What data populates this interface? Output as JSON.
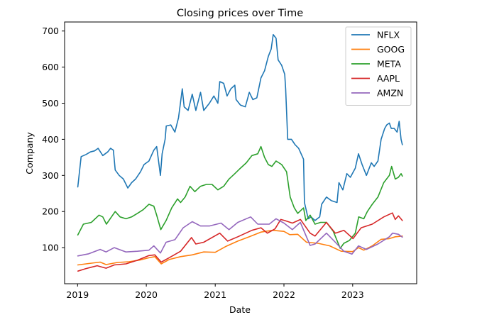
{
  "chart_data": {
    "type": "line",
    "title": "Closing prices over Time",
    "xlabel": "Date",
    "ylabel": "Company",
    "xlim": [
      "2018-10-24",
      "2023-12-07"
    ],
    "ylim": [
      0,
      725
    ],
    "xticks": [
      {
        "value": "2019-01-01",
        "label": "2019"
      },
      {
        "value": "2020-01-01",
        "label": "2020"
      },
      {
        "value": "2021-01-01",
        "label": "2021"
      },
      {
        "value": "2022-01-01",
        "label": "2022"
      },
      {
        "value": "2023-01-01",
        "label": "2023"
      }
    ],
    "yticks": [
      {
        "value": 100,
        "label": "100"
      },
      {
        "value": 200,
        "label": "200"
      },
      {
        "value": 300,
        "label": "300"
      },
      {
        "value": 400,
        "label": "400"
      },
      {
        "value": 500,
        "label": "500"
      },
      {
        "value": 600,
        "label": "600"
      },
      {
        "value": 700,
        "label": "700"
      }
    ],
    "grid": false,
    "legend_position": "top-right",
    "series": [
      {
        "name": "NFLX",
        "color": "#1f77b4",
        "points": [
          [
            "2019-01-02",
            268
          ],
          [
            "2019-01-20",
            352
          ],
          [
            "2019-02-15",
            358
          ],
          [
            "2019-03-10",
            365
          ],
          [
            "2019-04-01",
            368
          ],
          [
            "2019-04-20",
            375
          ],
          [
            "2019-05-15",
            355
          ],
          [
            "2019-06-10",
            365
          ],
          [
            "2019-06-25",
            375
          ],
          [
            "2019-07-10",
            370
          ],
          [
            "2019-07-20",
            315
          ],
          [
            "2019-08-10",
            300
          ],
          [
            "2019-09-01",
            290
          ],
          [
            "2019-09-25",
            265
          ],
          [
            "2019-10-15",
            280
          ],
          [
            "2019-11-05",
            290
          ],
          [
            "2019-12-01",
            310
          ],
          [
            "2019-12-20",
            330
          ],
          [
            "2020-01-15",
            340
          ],
          [
            "2020-02-10",
            370
          ],
          [
            "2020-02-25",
            380
          ],
          [
            "2020-03-16",
            300
          ],
          [
            "2020-03-25",
            360
          ],
          [
            "2020-04-10",
            400
          ],
          [
            "2020-04-16",
            437
          ],
          [
            "2020-05-10",
            440
          ],
          [
            "2020-06-01",
            420
          ],
          [
            "2020-06-20",
            460
          ],
          [
            "2020-07-10",
            540
          ],
          [
            "2020-07-20",
            490
          ],
          [
            "2020-08-10",
            480
          ],
          [
            "2020-09-01",
            525
          ],
          [
            "2020-09-20",
            480
          ],
          [
            "2020-10-15",
            530
          ],
          [
            "2020-11-01",
            480
          ],
          [
            "2020-12-01",
            500
          ],
          [
            "2020-12-25",
            520
          ],
          [
            "2021-01-15",
            500
          ],
          [
            "2021-01-25",
            560
          ],
          [
            "2021-02-15",
            555
          ],
          [
            "2021-03-05",
            520
          ],
          [
            "2021-03-25",
            540
          ],
          [
            "2021-04-15",
            550
          ],
          [
            "2021-04-22",
            510
          ],
          [
            "2021-05-15",
            495
          ],
          [
            "2021-06-10",
            490
          ],
          [
            "2021-07-01",
            530
          ],
          [
            "2021-07-20",
            510
          ],
          [
            "2021-08-10",
            515
          ],
          [
            "2021-09-01",
            570
          ],
          [
            "2021-09-20",
            590
          ],
          [
            "2021-10-10",
            630
          ],
          [
            "2021-10-25",
            650
          ],
          [
            "2021-11-05",
            690
          ],
          [
            "2021-11-20",
            680
          ],
          [
            "2021-12-01",
            620
          ],
          [
            "2021-12-20",
            605
          ],
          [
            "2022-01-05",
            580
          ],
          [
            "2022-01-10",
            540
          ],
          [
            "2022-01-21",
            400
          ],
          [
            "2022-02-10",
            400
          ],
          [
            "2022-03-01",
            385
          ],
          [
            "2022-03-20",
            375
          ],
          [
            "2022-04-15",
            345
          ],
          [
            "2022-04-20",
            225
          ],
          [
            "2022-05-10",
            180
          ],
          [
            "2022-05-25",
            185
          ],
          [
            "2022-06-15",
            175
          ],
          [
            "2022-07-10",
            185
          ],
          [
            "2022-07-20",
            220
          ],
          [
            "2022-08-15",
            240
          ],
          [
            "2022-09-10",
            230
          ],
          [
            "2022-10-10",
            225
          ],
          [
            "2022-10-20",
            280
          ],
          [
            "2022-11-10",
            260
          ],
          [
            "2022-12-01",
            305
          ],
          [
            "2022-12-20",
            295
          ],
          [
            "2023-01-15",
            320
          ],
          [
            "2023-02-01",
            360
          ],
          [
            "2023-02-20",
            330
          ],
          [
            "2023-03-15",
            300
          ],
          [
            "2023-04-10",
            335
          ],
          [
            "2023-04-25",
            325
          ],
          [
            "2023-05-15",
            340
          ],
          [
            "2023-06-01",
            400
          ],
          [
            "2023-06-20",
            430
          ],
          [
            "2023-07-01",
            440
          ],
          [
            "2023-07-15",
            445
          ],
          [
            "2023-07-25",
            430
          ],
          [
            "2023-08-10",
            430
          ],
          [
            "2023-08-25",
            420
          ],
          [
            "2023-09-05",
            450
          ],
          [
            "2023-09-15",
            400
          ],
          [
            "2023-09-22",
            385
          ]
        ]
      },
      {
        "name": "GOOG",
        "color": "#ff7f0e",
        "points": [
          [
            "2019-01-02",
            52
          ],
          [
            "2019-03-01",
            56
          ],
          [
            "2019-05-01",
            60
          ],
          [
            "2019-06-01",
            53
          ],
          [
            "2019-08-01",
            59
          ],
          [
            "2019-10-01",
            61
          ],
          [
            "2019-12-01",
            66
          ],
          [
            "2020-01-15",
            72
          ],
          [
            "2020-02-15",
            75
          ],
          [
            "2020-03-20",
            55
          ],
          [
            "2020-05-01",
            67
          ],
          [
            "2020-07-01",
            75
          ],
          [
            "2020-09-01",
            80
          ],
          [
            "2020-11-01",
            88
          ],
          [
            "2021-01-01",
            87
          ],
          [
            "2021-03-01",
            104
          ],
          [
            "2021-05-01",
            118
          ],
          [
            "2021-07-01",
            130
          ],
          [
            "2021-09-01",
            143
          ],
          [
            "2021-11-01",
            148
          ],
          [
            "2022-01-01",
            145
          ],
          [
            "2022-02-01",
            136
          ],
          [
            "2022-03-15",
            137
          ],
          [
            "2022-05-01",
            115
          ],
          [
            "2022-07-01",
            112
          ],
          [
            "2022-09-01",
            105
          ],
          [
            "2022-11-01",
            90
          ],
          [
            "2023-01-01",
            89
          ],
          [
            "2023-02-01",
            100
          ],
          [
            "2023-03-01",
            93
          ],
          [
            "2023-04-15",
            105
          ],
          [
            "2023-06-01",
            123
          ],
          [
            "2023-07-15",
            125
          ],
          [
            "2023-08-15",
            130
          ],
          [
            "2023-09-22",
            132
          ]
        ]
      },
      {
        "name": "META",
        "color": "#2ca02c",
        "points": [
          [
            "2019-01-02",
            135
          ],
          [
            "2019-02-01",
            165
          ],
          [
            "2019-03-15",
            170
          ],
          [
            "2019-04-25",
            190
          ],
          [
            "2019-05-15",
            185
          ],
          [
            "2019-06-03",
            165
          ],
          [
            "2019-07-20",
            200
          ],
          [
            "2019-08-15",
            185
          ],
          [
            "2019-09-15",
            180
          ],
          [
            "2019-10-15",
            185
          ],
          [
            "2019-11-15",
            195
          ],
          [
            "2019-12-15",
            205
          ],
          [
            "2020-01-15",
            220
          ],
          [
            "2020-02-10",
            215
          ],
          [
            "2020-02-25",
            190
          ],
          [
            "2020-03-18",
            150
          ],
          [
            "2020-04-15",
            175
          ],
          [
            "2020-05-15",
            210
          ],
          [
            "2020-06-15",
            235
          ],
          [
            "2020-07-01",
            225
          ],
          [
            "2020-07-25",
            240
          ],
          [
            "2020-08-20",
            270
          ],
          [
            "2020-09-15",
            255
          ],
          [
            "2020-10-15",
            270
          ],
          [
            "2020-11-15",
            275
          ],
          [
            "2020-12-15",
            275
          ],
          [
            "2021-01-15",
            260
          ],
          [
            "2021-02-15",
            270
          ],
          [
            "2021-03-15",
            290
          ],
          [
            "2021-04-15",
            305
          ],
          [
            "2021-05-15",
            320
          ],
          [
            "2021-06-15",
            335
          ],
          [
            "2021-07-15",
            355
          ],
          [
            "2021-08-15",
            360
          ],
          [
            "2021-09-01",
            380
          ],
          [
            "2021-09-20",
            350
          ],
          [
            "2021-10-10",
            330
          ],
          [
            "2021-10-29",
            325
          ],
          [
            "2021-11-20",
            340
          ],
          [
            "2021-12-20",
            330
          ],
          [
            "2022-01-15",
            310
          ],
          [
            "2022-02-03",
            240
          ],
          [
            "2022-02-25",
            210
          ],
          [
            "2022-03-15",
            195
          ],
          [
            "2022-04-15",
            210
          ],
          [
            "2022-04-27",
            175
          ],
          [
            "2022-05-20",
            190
          ],
          [
            "2022-06-15",
            165
          ],
          [
            "2022-07-15",
            170
          ],
          [
            "2022-08-15",
            170
          ],
          [
            "2022-09-20",
            145
          ],
          [
            "2022-10-27",
            98
          ],
          [
            "2022-11-15",
            112
          ],
          [
            "2022-12-15",
            120
          ],
          [
            "2023-01-15",
            140
          ],
          [
            "2023-02-02",
            185
          ],
          [
            "2023-03-01",
            180
          ],
          [
            "2023-03-20",
            200
          ],
          [
            "2023-04-15",
            220
          ],
          [
            "2023-05-15",
            240
          ],
          [
            "2023-06-15",
            280
          ],
          [
            "2023-07-15",
            300
          ],
          [
            "2023-07-27",
            325
          ],
          [
            "2023-08-15",
            290
          ],
          [
            "2023-09-01",
            295
          ],
          [
            "2023-09-15",
            305
          ],
          [
            "2023-09-22",
            298
          ]
        ]
      },
      {
        "name": "AAPL",
        "color": "#d62728",
        "points": [
          [
            "2019-01-03",
            35
          ],
          [
            "2019-02-15",
            42
          ],
          [
            "2019-04-15",
            50
          ],
          [
            "2019-06-01",
            43
          ],
          [
            "2019-07-15",
            52
          ],
          [
            "2019-09-15",
            55
          ],
          [
            "2019-11-15",
            65
          ],
          [
            "2020-01-15",
            78
          ],
          [
            "2020-02-15",
            80
          ],
          [
            "2020-03-20",
            60
          ],
          [
            "2020-05-01",
            72
          ],
          [
            "2020-07-01",
            90
          ],
          [
            "2020-08-28",
            128
          ],
          [
            "2020-09-20",
            110
          ],
          [
            "2020-11-01",
            115
          ],
          [
            "2021-01-25",
            140
          ],
          [
            "2021-03-08",
            118
          ],
          [
            "2021-05-01",
            130
          ],
          [
            "2021-07-15",
            148
          ],
          [
            "2021-09-01",
            155
          ],
          [
            "2021-10-05",
            140
          ],
          [
            "2021-11-15",
            152
          ],
          [
            "2021-12-15",
            178
          ],
          [
            "2022-01-05",
            175
          ],
          [
            "2022-02-15",
            168
          ],
          [
            "2022-03-30",
            178
          ],
          [
            "2022-05-20",
            140
          ],
          [
            "2022-06-15",
            132
          ],
          [
            "2022-08-15",
            170
          ],
          [
            "2022-10-01",
            140
          ],
          [
            "2022-11-15",
            148
          ],
          [
            "2023-01-03",
            125
          ],
          [
            "2023-02-15",
            155
          ],
          [
            "2023-04-15",
            165
          ],
          [
            "2023-06-15",
            185
          ],
          [
            "2023-07-31",
            196
          ],
          [
            "2023-08-15",
            178
          ],
          [
            "2023-09-01",
            188
          ],
          [
            "2023-09-22",
            175
          ]
        ]
      },
      {
        "name": "AMZN",
        "color": "#9467bd",
        "points": [
          [
            "2019-01-02",
            77
          ],
          [
            "2019-03-01",
            83
          ],
          [
            "2019-05-01",
            95
          ],
          [
            "2019-06-01",
            88
          ],
          [
            "2019-07-15",
            100
          ],
          [
            "2019-09-15",
            88
          ],
          [
            "2019-11-15",
            90
          ],
          [
            "2020-01-15",
            93
          ],
          [
            "2020-02-10",
            105
          ],
          [
            "2020-03-16",
            85
          ],
          [
            "2020-04-15",
            115
          ],
          [
            "2020-06-01",
            122
          ],
          [
            "2020-07-15",
            155
          ],
          [
            "2020-09-01",
            172
          ],
          [
            "2020-10-15",
            160
          ],
          [
            "2020-12-01",
            160
          ],
          [
            "2021-02-01",
            168
          ],
          [
            "2021-03-15",
            150
          ],
          [
            "2021-05-01",
            170
          ],
          [
            "2021-07-08",
            185
          ],
          [
            "2021-08-15",
            165
          ],
          [
            "2021-10-15",
            165
          ],
          [
            "2021-11-20",
            180
          ],
          [
            "2022-01-01",
            168
          ],
          [
            "2022-02-15",
            150
          ],
          [
            "2022-03-29",
            170
          ],
          [
            "2022-05-20",
            106
          ],
          [
            "2022-06-15",
            110
          ],
          [
            "2022-08-15",
            140
          ],
          [
            "2022-10-01",
            115
          ],
          [
            "2022-11-15",
            90
          ],
          [
            "2022-12-28",
            82
          ],
          [
            "2023-02-01",
            105
          ],
          [
            "2023-03-15",
            95
          ],
          [
            "2023-05-15",
            110
          ],
          [
            "2023-07-15",
            130
          ],
          [
            "2023-08-01",
            140
          ],
          [
            "2023-09-01",
            137
          ],
          [
            "2023-09-22",
            129
          ]
        ]
      }
    ]
  }
}
